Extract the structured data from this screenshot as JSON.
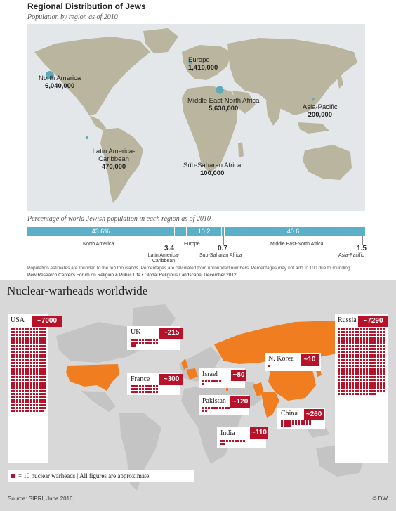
{
  "panel1": {
    "title": "Regional Distribution of Jews",
    "subtitle": "Population by region as of 2010",
    "regions": [
      {
        "name": "North America",
        "value": "6,040,000"
      },
      {
        "name": "Europe",
        "value": "1,410,000"
      },
      {
        "name": "Middle East-North Africa",
        "value": "5,630,000"
      },
      {
        "name": "Asia-Pacific",
        "value": "200,000"
      },
      {
        "name": "Latin America-Caribbean",
        "value": "470,000"
      },
      {
        "name": "Sub-Saharan Africa",
        "value": "100,000"
      }
    ],
    "bar_title": "Percentage of world Jewish population in each region as of 2010",
    "note": "Population estimates are rounded to the ten thousands. Percentages are calculated from unrounded numbers. Percentages may not add to 100 due to rounding.",
    "source": "Pew Research Center's Forum on Religion & Public Life • Global Religious Landscape, December 2012",
    "bar_labels": {
      "na": "North America",
      "lac": "Latin America-Caribbean",
      "eu": "Europe",
      "ssa": "Sub-Saharan Africa",
      "mena": "Middle East-North Africa",
      "ap": "Asia-Pacific"
    },
    "bar_values": {
      "na": "43.6%",
      "lac": "3.4",
      "eu": "10.2",
      "ssa": "0.7",
      "mena": "40.6",
      "ap": "1.5"
    },
    "colors": {
      "bar": "#5bb0c8",
      "dot": "#5fa9b8",
      "land": "#b9b59e",
      "water": "#e3e7ea"
    }
  },
  "panel2": {
    "title": "Nuclear-warheads worldwide",
    "countries": [
      {
        "name": "USA",
        "value": "~7000"
      },
      {
        "name": "Russia",
        "value": "~7290"
      },
      {
        "name": "UK",
        "value": "~215"
      },
      {
        "name": "France",
        "value": "~300"
      },
      {
        "name": "Israel",
        "value": "~80"
      },
      {
        "name": "N. Korea",
        "value": "~10"
      },
      {
        "name": "Pakistan",
        "value": "~120"
      },
      {
        "name": "India",
        "value": "~110"
      },
      {
        "name": "China",
        "value": "~260"
      }
    ],
    "legend": "= 10 nuclear warheads  |  All figures are approximate.",
    "source": "Source: SIPRI, June 2016",
    "brand": "© DW",
    "colors": {
      "badge": "#b8112a",
      "highlight": "#f07d1f",
      "land": "#c4c4c4",
      "bg": "#d8d8d8"
    }
  },
  "chart_data": [
    {
      "type": "bar",
      "title": "Regional Distribution of Jews",
      "subtitle": "Population by region as of 2010",
      "categories": [
        "North America",
        "Latin America-Caribbean",
        "Europe",
        "Sub-Saharan Africa",
        "Middle East-North Africa",
        "Asia-Pacific"
      ],
      "series": [
        {
          "name": "Population",
          "values": [
            6040000,
            470000,
            1410000,
            100000,
            5630000,
            200000
          ]
        },
        {
          "name": "Percentage of world Jewish population",
          "values": [
            43.6,
            3.4,
            10.2,
            0.7,
            40.6,
            1.5
          ]
        }
      ]
    },
    {
      "type": "bar",
      "title": "Nuclear-warheads worldwide",
      "categories": [
        "USA",
        "Russia",
        "UK",
        "France",
        "Israel",
        "N. Korea",
        "Pakistan",
        "India",
        "China"
      ],
      "values": [
        7000,
        7290,
        215,
        300,
        80,
        10,
        120,
        110,
        260
      ]
    }
  ]
}
